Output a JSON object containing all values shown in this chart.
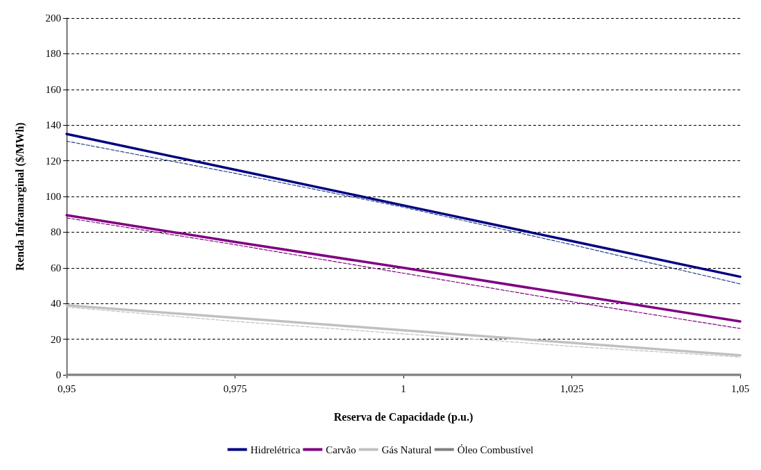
{
  "chart_data": {
    "type": "line",
    "xlabel": "Reserva de Capacidade (p.u.)",
    "ylabel": "Renda Inframarginal ($/MWh)",
    "x": [
      0.95,
      0.975,
      1,
      1.025,
      1.05
    ],
    "xlim": [
      0.95,
      1.05
    ],
    "xticks": [
      {
        "value": 0.95,
        "label": "0,95"
      },
      {
        "value": 0.975,
        "label": "0,975"
      },
      {
        "value": 1,
        "label": "1"
      },
      {
        "value": 1.025,
        "label": "1,025"
      },
      {
        "value": 1.05,
        "label": "1,05"
      }
    ],
    "ylim": [
      0,
      200
    ],
    "yticks": [
      0,
      20,
      40,
      60,
      80,
      100,
      120,
      140,
      160,
      180,
      200
    ],
    "grid": "y",
    "legend": "bottom",
    "marker": "none",
    "series": [
      {
        "name": "Hidrelétrica",
        "color": "#000080",
        "line_style": "solid",
        "values": [
          135,
          115,
          95,
          75,
          55
        ]
      },
      {
        "name": "Carvão",
        "color": "#800080",
        "line_style": "solid",
        "values": [
          89.5,
          74.5,
          60,
          45,
          30
        ]
      },
      {
        "name": "Gás Natural",
        "color": "#c0c0c0",
        "line_style": "solid",
        "values": [
          39,
          32,
          25,
          18,
          11
        ]
      },
      {
        "name": "Óleo Combustível",
        "color": "#808080",
        "line_style": "solid",
        "values": [
          0,
          0,
          0,
          0,
          0
        ]
      },
      {
        "color": "#1f3f8f",
        "line_style": "dashed",
        "values": [
          131,
          113,
          94,
          73,
          51
        ]
      },
      {
        "color": "#800080",
        "line_style": "dashed",
        "values": [
          88,
          73,
          57,
          41,
          26
        ]
      },
      {
        "color": "#c0c0c0",
        "line_style": "dashed",
        "values": [
          38,
          30,
          23,
          16,
          10
        ]
      }
    ]
  }
}
